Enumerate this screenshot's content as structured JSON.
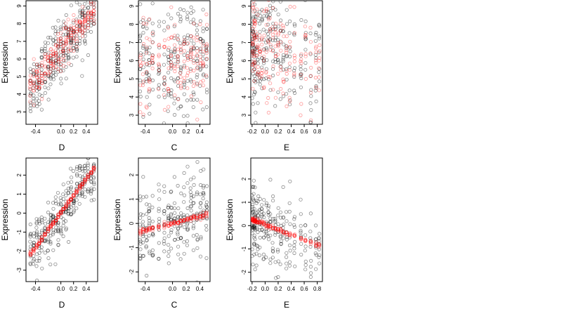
{
  "chart_data": [
    {
      "type": "scatter",
      "xlabel": "D",
      "ylabel": "Expression",
      "xlim": [
        -0.55,
        0.58
      ],
      "ylim": [
        2.3,
        9.3
      ],
      "xticks": [
        -0.4,
        0.0,
        0.2,
        0.4
      ],
      "xtick_labels": [
        "-0.4",
        "0.0",
        "0.2",
        "0.4"
      ],
      "yticks": [
        3,
        4,
        5,
        6,
        7,
        8,
        9
      ],
      "ytick_labels": [
        "3",
        "4",
        "5",
        "6",
        "7",
        "8",
        "9"
      ],
      "x_levels": [
        -0.48,
        -0.43,
        -0.38,
        -0.34,
        -0.3,
        -0.25,
        -0.2,
        -0.16,
        -0.12,
        -0.08,
        -0.04,
        0.0,
        0.04,
        0.08,
        0.12,
        0.16,
        0.2,
        0.25,
        0.3,
        0.34,
        0.38,
        0.43,
        0.48,
        0.52
      ],
      "series": [
        {
          "color": "#000000",
          "fit": {
            "type": "linear",
            "intercept": 6.5,
            "slope": 4.4
          },
          "spread": 0.85,
          "points_per_level": 12
        },
        {
          "color": "#ff0000",
          "fit": {
            "type": "linear",
            "intercept": 6.5,
            "slope": 4.4
          },
          "spread": 0.5,
          "points_per_level": 9
        }
      ],
      "grid": false
    },
    {
      "type": "scatter",
      "xlabel": "C",
      "ylabel": "Expression",
      "xlim": [
        -0.5,
        0.55
      ],
      "ylim": [
        2.5,
        9.3
      ],
      "xticks": [
        -0.4,
        0.0,
        0.2,
        0.4
      ],
      "xtick_labels": [
        "-0.4",
        "0.0",
        "0.2",
        "0.4"
      ],
      "yticks": [
        3,
        4,
        5,
        6,
        7,
        8,
        9
      ],
      "ytick_labels": [
        "3",
        "4",
        "5",
        "6",
        "7",
        "8",
        "9"
      ],
      "x_levels": [
        -0.47,
        -0.43,
        -0.38,
        -0.34,
        -0.29,
        -0.2,
        -0.12,
        -0.06,
        -0.02,
        0.03,
        0.08,
        0.12,
        0.17,
        0.22,
        0.27,
        0.31,
        0.36,
        0.41,
        0.45,
        0.5
      ],
      "series": [
        {
          "color": "#000000",
          "fit": {
            "type": "linear",
            "intercept": 5.9,
            "slope": 0.8
          },
          "spread": 1.7,
          "points_per_level": 12
        },
        {
          "color": "#ff0000",
          "fit": {
            "type": "linear",
            "intercept": 5.9,
            "slope": 0.8
          },
          "spread": 1.2,
          "points_per_level": 8
        }
      ],
      "grid": false
    },
    {
      "type": "scatter",
      "xlabel": "E",
      "ylabel": "Expression",
      "xlim": [
        -0.22,
        0.88
      ],
      "ylim": [
        2.5,
        9.3
      ],
      "xticks": [
        -0.2,
        0.0,
        0.2,
        0.4,
        0.6,
        0.8
      ],
      "xtick_labels": [
        "-0.2",
        "0.0",
        "0.2",
        "0.4",
        "0.6",
        "0.8"
      ],
      "yticks": [
        3,
        4,
        5,
        6,
        7,
        8,
        9
      ],
      "ytick_labels": [
        "3",
        "4",
        "5",
        "6",
        "7",
        "8",
        "9"
      ],
      "x_levels": [
        -0.2,
        -0.19,
        -0.18,
        -0.17,
        -0.16,
        -0.15,
        -0.13,
        -0.11,
        -0.08,
        -0.05,
        -0.02,
        0.02,
        0.05,
        0.08,
        0.12,
        0.16,
        0.2,
        0.24,
        0.28,
        0.33,
        0.38,
        0.45,
        0.55,
        0.62,
        0.7,
        0.78,
        0.83
      ],
      "series": [
        {
          "color": "#000000",
          "fit": {
            "type": "linear",
            "intercept": 6.6,
            "slope": -1.1
          },
          "spread": 1.6,
          "points_per_level": 9
        },
        {
          "color": "#ff0000",
          "fit": {
            "type": "linear",
            "intercept": 6.6,
            "slope": -1.1
          },
          "spread": 1.3,
          "points_per_level": 7
        }
      ],
      "grid": false
    },
    {
      "type": "scatter",
      "xlabel": "D",
      "ylabel": "Expression",
      "xlim": [
        -0.55,
        0.58
      ],
      "ylim": [
        -3.6,
        2.9
      ],
      "xticks": [
        -0.4,
        0.0,
        0.2,
        0.4
      ],
      "xtick_labels": [
        "-0.4",
        "0.0",
        "0.2",
        "0.4"
      ],
      "yticks": [
        -3,
        -2,
        -1,
        0,
        1,
        2
      ],
      "ytick_labels": [
        "-3",
        "-2",
        "-1",
        "0",
        "1",
        "2"
      ],
      "x_levels": [
        -0.48,
        -0.43,
        -0.38,
        -0.34,
        -0.3,
        -0.25,
        -0.2,
        -0.16,
        -0.12,
        -0.08,
        -0.04,
        0.0,
        0.04,
        0.08,
        0.12,
        0.16,
        0.2,
        0.25,
        0.3,
        0.34,
        0.38,
        0.43,
        0.48,
        0.52
      ],
      "series": [
        {
          "color": "#000000",
          "fit": {
            "type": "linear",
            "intercept": 0.0,
            "slope": 4.5
          },
          "spread": 0.7,
          "points_per_level": 12
        },
        {
          "color": "#ff0000",
          "fit": {
            "type": "linear",
            "intercept": 0.0,
            "slope": 4.5
          },
          "spread": 0.06,
          "points_per_level": 8
        }
      ],
      "grid": false
    },
    {
      "type": "scatter",
      "xlabel": "C",
      "ylabel": "Expression",
      "xlim": [
        -0.5,
        0.55
      ],
      "ylim": [
        -2.4,
        2.7
      ],
      "xticks": [
        -0.4,
        0.0,
        0.2,
        0.4
      ],
      "xtick_labels": [
        "-0.4",
        "0.0",
        "0.2",
        "0.4"
      ],
      "yticks": [
        -2,
        -1,
        0,
        1,
        2
      ],
      "ytick_labels": [
        "-2",
        "-1",
        "0",
        "1",
        "2"
      ],
      "x_levels": [
        -0.47,
        -0.43,
        -0.38,
        -0.34,
        -0.29,
        -0.2,
        -0.12,
        -0.06,
        -0.02,
        0.03,
        0.08,
        0.12,
        0.17,
        0.22,
        0.27,
        0.31,
        0.36,
        0.41,
        0.45,
        0.5
      ],
      "series": [
        {
          "color": "#000000",
          "fit": {
            "type": "linear",
            "intercept": 0.0,
            "slope": 0.75
          },
          "spread": 0.9,
          "points_per_level": 12
        },
        {
          "color": "#ff0000",
          "fit": {
            "type": "linear",
            "intercept": 0.0,
            "slope": 0.75
          },
          "spread": 0.05,
          "points_per_level": 7
        }
      ],
      "grid": false
    },
    {
      "type": "scatter",
      "xlabel": "E",
      "ylabel": "Expression",
      "xlim": [
        -0.22,
        0.88
      ],
      "ylim": [
        -2.4,
        2.9
      ],
      "xticks": [
        -0.2,
        0.0,
        0.2,
        0.4,
        0.6,
        0.8
      ],
      "xtick_labels": [
        "-0.2",
        "0.0",
        "0.2",
        "0.4",
        "0.6",
        "0.8"
      ],
      "yticks": [
        -2,
        -1,
        0,
        1,
        2
      ],
      "ytick_labels": [
        "-2",
        "-1",
        "0",
        "1",
        "2"
      ],
      "x_levels": [
        -0.2,
        -0.19,
        -0.18,
        -0.17,
        -0.16,
        -0.15,
        -0.13,
        -0.11,
        -0.08,
        -0.05,
        -0.02,
        0.02,
        0.05,
        0.08,
        0.12,
        0.16,
        0.2,
        0.24,
        0.28,
        0.33,
        0.38,
        0.45,
        0.55,
        0.62,
        0.7,
        0.78,
        0.83
      ],
      "series": [
        {
          "color": "#000000",
          "fit": {
            "type": "linear",
            "intercept": 0.05,
            "slope": -1.1
          },
          "spread": 0.8,
          "points_per_level": 9
        },
        {
          "color": "#ff0000",
          "fit": {
            "type": "linear",
            "intercept": 0.05,
            "slope": -1.1
          },
          "spread": 0.05,
          "points_per_level": 6
        }
      ],
      "grid": false
    }
  ]
}
